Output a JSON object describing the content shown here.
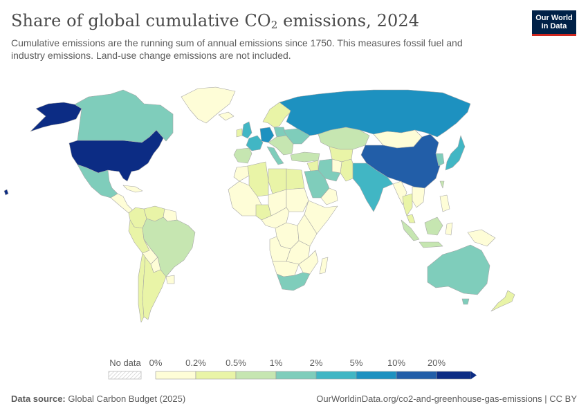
{
  "header": {
    "title_main": "Share of global cumulative CO",
    "title_sub": "2",
    "title_tail": " emissions, 2024",
    "subtitle": "Cumulative emissions are the running sum of annual emissions since 1750. This measures fossil fuel and industry emissions. Land-use change emissions are not included."
  },
  "logo": {
    "line1": "Our World",
    "line2": "in Data"
  },
  "legend": {
    "no_data_label": "No data",
    "bins": [
      "0%",
      "0.2%",
      "0.5%",
      "1%",
      "2%",
      "5%",
      "10%",
      "20%"
    ],
    "colors": [
      "#fefdd7",
      "#e9f4a7",
      "#c6e6b1",
      "#7fcdbb",
      "#41b6c4",
      "#1d91c0",
      "#225ea8",
      "#0c2c84"
    ]
  },
  "footer": {
    "source_label": "Data source:",
    "source_value": " Global Carbon Budget (2025)",
    "url": "OurWorldinData.org/co2-and-greenhouse-gas-emissions | CC BY"
  },
  "map": {
    "countries": [
      {
        "name": "United States",
        "bin": 7
      },
      {
        "name": "Alaska",
        "bin": 7
      },
      {
        "name": "Canada",
        "bin": 3
      },
      {
        "name": "Greenland",
        "bin": 0
      },
      {
        "name": "Mexico",
        "bin": 3
      },
      {
        "name": "Central America",
        "bin": 0
      },
      {
        "name": "Colombia",
        "bin": 1
      },
      {
        "name": "Venezuela",
        "bin": 1
      },
      {
        "name": "Guianas",
        "bin": 0
      },
      {
        "name": "Peru",
        "bin": 1
      },
      {
        "name": "Brazil",
        "bin": 2
      },
      {
        "name": "Bolivia",
        "bin": 0
      },
      {
        "name": "Paraguay",
        "bin": 0
      },
      {
        "name": "Chile",
        "bin": 1
      },
      {
        "name": "Argentina",
        "bin": 1
      },
      {
        "name": "Uruguay",
        "bin": 0
      },
      {
        "name": "Iceland",
        "bin": 0
      },
      {
        "name": "United Kingdom",
        "bin": 4
      },
      {
        "name": "Ireland",
        "bin": 1
      },
      {
        "name": "Scandinavia",
        "bin": 1
      },
      {
        "name": "France",
        "bin": 4
      },
      {
        "name": "Iberia",
        "bin": 2
      },
      {
        "name": "Germany",
        "bin": 5
      },
      {
        "name": "Poland",
        "bin": 3
      },
      {
        "name": "Italy",
        "bin": 3
      },
      {
        "name": "Central Europe",
        "bin": 2
      },
      {
        "name": "Ukraine",
        "bin": 3
      },
      {
        "name": "Turkey",
        "bin": 2
      },
      {
        "name": "Russia",
        "bin": 5
      },
      {
        "name": "Kazakhstan",
        "bin": 2
      },
      {
        "name": "Central Asia",
        "bin": 1
      },
      {
        "name": "Mongolia",
        "bin": 0
      },
      {
        "name": "China",
        "bin": 6
      },
      {
        "name": "Japan",
        "bin": 4
      },
      {
        "name": "Korea",
        "bin": 3
      },
      {
        "name": "India",
        "bin": 4
      },
      {
        "name": "Pakistan",
        "bin": 1
      },
      {
        "name": "Afghanistan",
        "bin": 0
      },
      {
        "name": "Iran",
        "bin": 3
      },
      {
        "name": "Iraq",
        "bin": 1
      },
      {
        "name": "Saudi Arabia",
        "bin": 3
      },
      {
        "name": "Arabian Peninsula",
        "bin": 0
      },
      {
        "name": "Myanmar",
        "bin": 0
      },
      {
        "name": "Thailand",
        "bin": 1
      },
      {
        "name": "Indochina",
        "bin": 0
      },
      {
        "name": "Malaysia",
        "bin": 1
      },
      {
        "name": "Sumatra",
        "bin": 2
      },
      {
        "name": "Java",
        "bin": 2
      },
      {
        "name": "Borneo",
        "bin": 2
      },
      {
        "name": "Sulawesi",
        "bin": 0
      },
      {
        "name": "New Guinea",
        "bin": 0
      },
      {
        "name": "Philippines",
        "bin": 0
      },
      {
        "name": "Taiwan",
        "bin": 2
      },
      {
        "name": "Australia",
        "bin": 3
      },
      {
        "name": "Tasmania",
        "bin": 3
      },
      {
        "name": "New Zealand",
        "bin": 1
      },
      {
        "name": "Morocco",
        "bin": 0
      },
      {
        "name": "Algeria",
        "bin": 1
      },
      {
        "name": "Libya",
        "bin": 1
      },
      {
        "name": "Egypt",
        "bin": 1
      },
      {
        "name": "West Africa",
        "bin": 0
      },
      {
        "name": "Nigeria",
        "bin": 1
      },
      {
        "name": "Chad",
        "bin": 0
      },
      {
        "name": "Sudan",
        "bin": 0
      },
      {
        "name": "Horn of Africa",
        "bin": 0
      },
      {
        "name": "Central Africa",
        "bin": 0
      },
      {
        "name": "DR Congo",
        "bin": 0
      },
      {
        "name": "East Africa",
        "bin": 0
      },
      {
        "name": "Angola",
        "bin": 0
      },
      {
        "name": "Zambia & Zimbabwe",
        "bin": 0
      },
      {
        "name": "Namibia & Botswana",
        "bin": 0
      },
      {
        "name": "Mozambique",
        "bin": 0
      },
      {
        "name": "South Africa",
        "bin": 3
      },
      {
        "name": "Madagascar",
        "bin": 0
      },
      {
        "name": "Cuba & Caribbean",
        "bin": 0
      },
      {
        "name": "Hawaii",
        "bin": 7
      }
    ]
  }
}
